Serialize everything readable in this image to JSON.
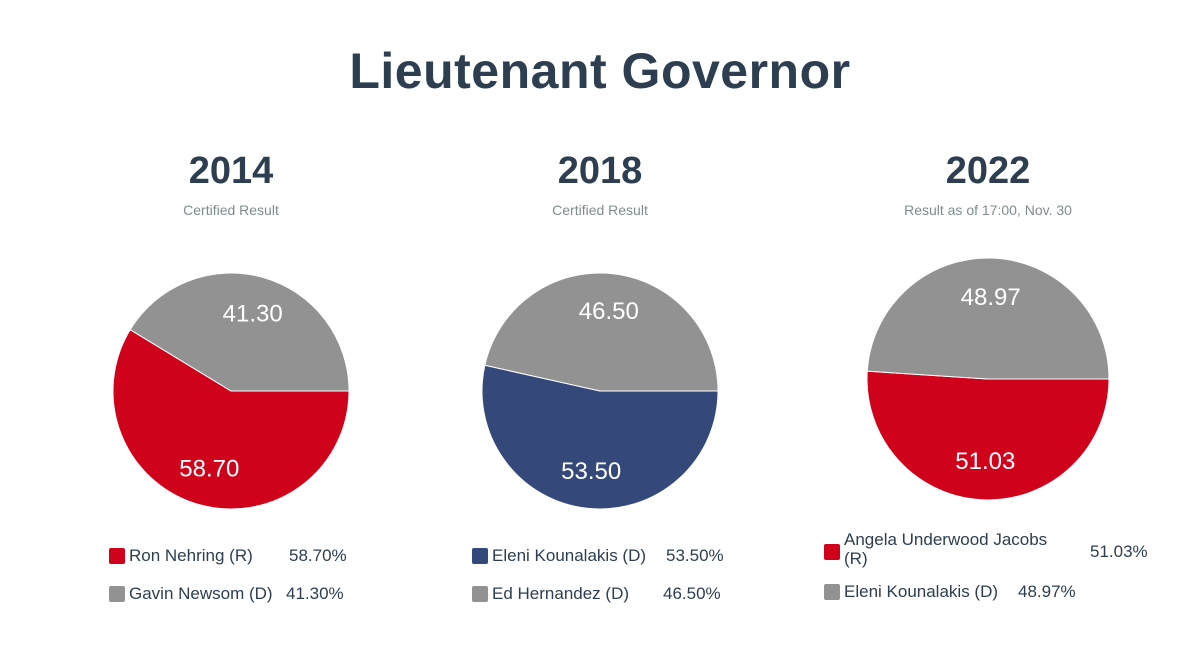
{
  "title": "Lieutenant Governor",
  "chart_data": [
    {
      "type": "pie",
      "title": "2014",
      "subtitle": "Certified Result",
      "slices": [
        {
          "label": "Ron Nehring (R)",
          "value": 58.7,
          "display": "58.70",
          "legend_value": "58.70%",
          "color": "#d0021b"
        },
        {
          "label": "Gavin Newsom (D)",
          "value": 41.3,
          "display": "41.30",
          "legend_value": "41.30%",
          "color": "#929292"
        }
      ]
    },
    {
      "type": "pie",
      "title": "2018",
      "subtitle": "Certified Result",
      "slices": [
        {
          "label": "Eleni Kounalakis (D)",
          "value": 53.5,
          "display": "53.50",
          "legend_value": "53.50%",
          "color": "#34497a"
        },
        {
          "label": "Ed Hernandez (D)",
          "value": 46.5,
          "display": "46.50",
          "legend_value": "46.50%",
          "color": "#929292"
        }
      ]
    },
    {
      "type": "pie",
      "title": "2022",
      "subtitle": "Result as of 17:00, Nov. 30",
      "slices": [
        {
          "label": "Angela Underwood Jacobs (R)",
          "value": 51.03,
          "display": "51.03",
          "legend_value": "51.03%",
          "color": "#d0021b"
        },
        {
          "label": "Eleni Kounalakis (D)",
          "value": 48.97,
          "display": "48.97",
          "legend_value": "48.97%",
          "color": "#929292"
        }
      ]
    }
  ]
}
